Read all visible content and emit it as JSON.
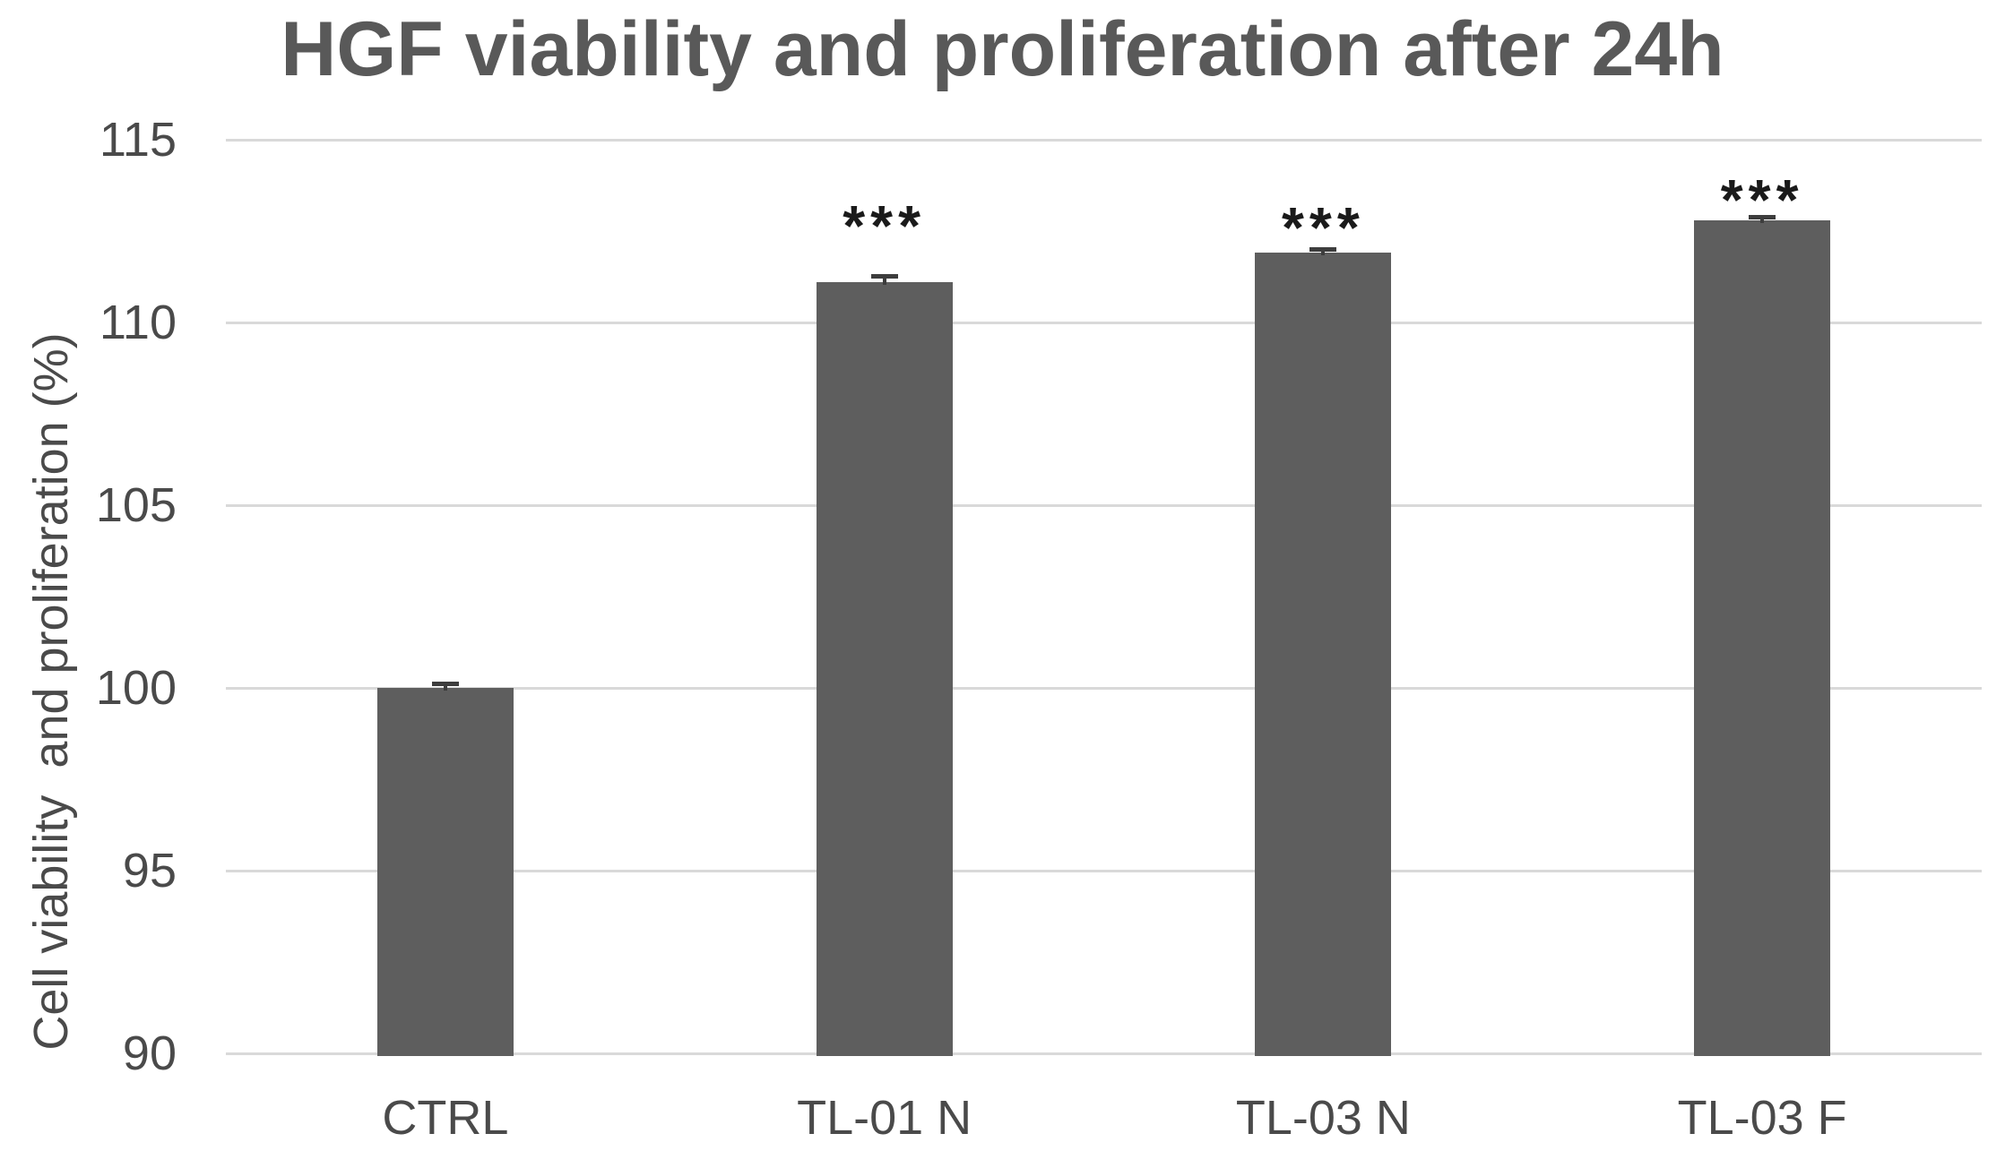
{
  "chart_data": {
    "type": "bar",
    "title": "HGF viability and proliferation after 24h",
    "xlabel": "",
    "ylabel": "Cell viability  and proliferation (%)",
    "categories": [
      "CTRL",
      "TL-01 N",
      "TL-03 N",
      "TL-03 F"
    ],
    "values": [
      100.0,
      111.1,
      111.9,
      112.8
    ],
    "errors": [
      0.12,
      0.18,
      0.12,
      0.1
    ],
    "yticks": [
      90,
      95,
      100,
      105,
      110,
      115
    ],
    "ylim": [
      90,
      115
    ],
    "grid": "horizontal",
    "legend": "none",
    "annotations": [
      {
        "category": "TL-01 N",
        "text": "***",
        "y": 112.9
      },
      {
        "category": "TL-03 N",
        "text": "***",
        "y": 112.85
      },
      {
        "category": "TL-03 F",
        "text": "***",
        "y": 113.6
      }
    ],
    "colors": {
      "background": "#ffffff",
      "bar": "#5e5e5e",
      "gridline": "#d9d9d9",
      "error_bar": "#3d3d3d",
      "axis_text": "#4a4a4a",
      "title_text": "#595959",
      "annotation_text": "#1a1a1a"
    }
  }
}
